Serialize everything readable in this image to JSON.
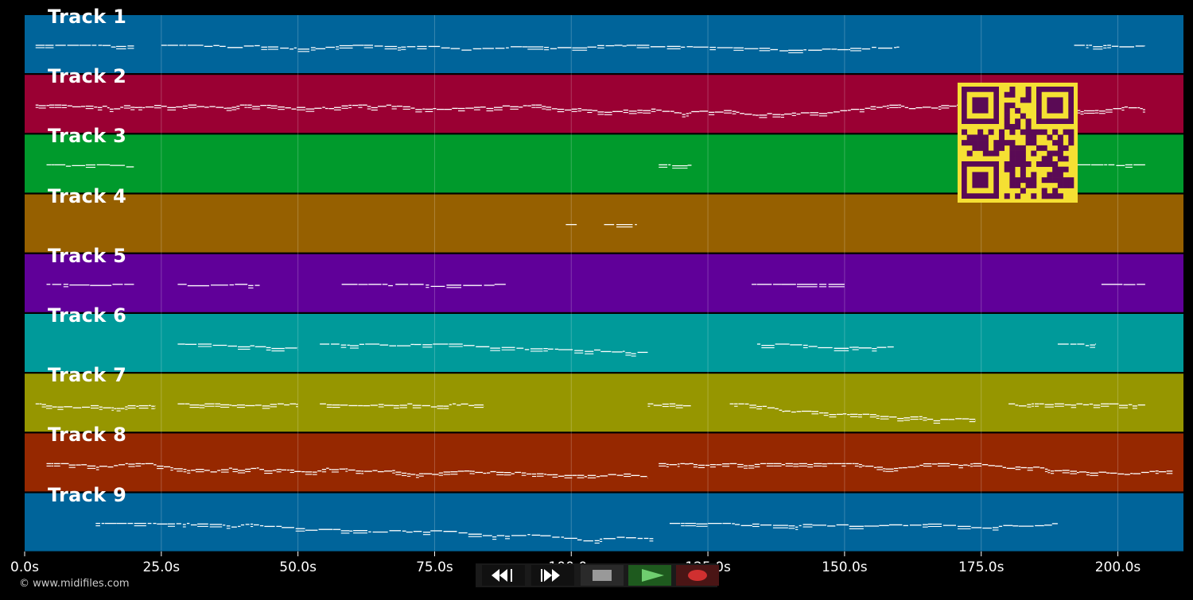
{
  "app": {
    "copyright": "© www.midifiles.com"
  },
  "timeline": {
    "max_seconds": 212,
    "ticks": [
      {
        "t": 0,
        "label": "0.0s"
      },
      {
        "t": 25,
        "label": "25.0s"
      },
      {
        "t": 50,
        "label": "50.0s"
      },
      {
        "t": 75,
        "label": "75.0s"
      },
      {
        "t": 100,
        "label": "100.0s"
      },
      {
        "t": 125,
        "label": "125.0s"
      },
      {
        "t": 150,
        "label": "150.0s"
      },
      {
        "t": 175,
        "label": "175.0s"
      },
      {
        "t": 200,
        "label": "200.0s"
      }
    ]
  },
  "tracks": [
    {
      "label": "Track 1",
      "color": "#00649a",
      "segments": [
        [
          2,
          20
        ],
        [
          25,
          160
        ],
        [
          192,
          205
        ]
      ],
      "density": 0.55
    },
    {
      "label": "Track 2",
      "color": "#9a0033",
      "segments": [
        [
          2,
          205
        ]
      ],
      "density": 0.9
    },
    {
      "label": "Track 3",
      "color": "#009a2c",
      "segments": [
        [
          4,
          20
        ],
        [
          116,
          122
        ],
        [
          192,
          205
        ]
      ],
      "density": 0.5
    },
    {
      "label": "Track 4",
      "color": "#966000",
      "segments": [
        [
          99,
          101
        ],
        [
          106,
          112
        ]
      ],
      "density": 0.4
    },
    {
      "label": "Track 5",
      "color": "#600099",
      "segments": [
        [
          4,
          20
        ],
        [
          28,
          43
        ],
        [
          58,
          88
        ],
        [
          133,
          150
        ],
        [
          197,
          205
        ]
      ],
      "density": 0.3
    },
    {
      "label": "Track 6",
      "color": "#009a9a",
      "segments": [
        [
          28,
          50
        ],
        [
          54,
          114
        ],
        [
          134,
          159
        ],
        [
          189,
          196
        ]
      ],
      "density": 0.6
    },
    {
      "label": "Track 7",
      "color": "#969600",
      "segments": [
        [
          2,
          24
        ],
        [
          28,
          50
        ],
        [
          54,
          84
        ],
        [
          114,
          122
        ],
        [
          129,
          174
        ],
        [
          180,
          205
        ]
      ],
      "density": 0.85
    },
    {
      "label": "Track 8",
      "color": "#962800",
      "segments": [
        [
          4,
          114
        ],
        [
          116,
          210
        ]
      ],
      "density": 0.9
    },
    {
      "label": "Track 9",
      "color": "#00649a",
      "segments": [
        [
          13,
          115
        ],
        [
          118,
          189
        ]
      ],
      "density": 0.6
    }
  ],
  "transport": {
    "rewind": "rewind-icon",
    "fast_forward": "fast-forward-icon",
    "stop": "stop-icon",
    "play": "play-icon",
    "record": "record-icon"
  },
  "colors": {
    "qr_bg": "#f5e033",
    "qr_fg": "#5a0a55",
    "play": "#2c7a2c",
    "record": "#5c1a1a"
  }
}
